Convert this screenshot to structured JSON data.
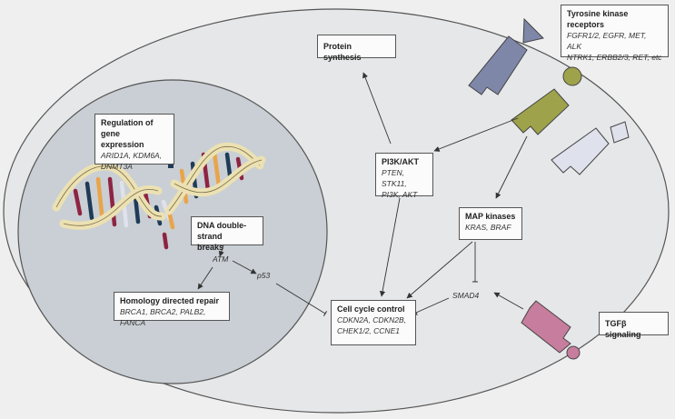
{
  "labels": {
    "protein_synthesis": "Protein synthesis",
    "tyrosine": {
      "title": "Tyrosine kinase receptors",
      "genes1": "FGFR1/2, EGFR, MET, ALK",
      "genes2": "NTRK1, ERBB2/3, RET, etc"
    },
    "regulation": {
      "title1": "Regulation of gene",
      "title2": "expression",
      "genes1": "ARID1A, KDM6A,",
      "genes2": "DNMT3A"
    },
    "pi3k": {
      "title": "PI3K/AKT",
      "genes1": "PTEN, STK11,",
      "genes2": "PI3K, AKT"
    },
    "map": {
      "title": "MAP kinases",
      "genes": "KRAS, BRAF"
    },
    "dsb": {
      "title1": "DNA double-strand",
      "title2": "breaks"
    },
    "atm": "ATM",
    "p53": "p53",
    "smad4": "SMAD4",
    "hdr": {
      "title": "Homology directed repair",
      "genes": "BRCA1, BRCA2, PALB2, FANCA"
    },
    "cell_cycle": {
      "title": "Cell cycle control",
      "genes1": "CDKN2A, CDKN2B,",
      "genes2": "CHEK1/2, CCNE1"
    },
    "tgfb": "TGFβ signaling"
  },
  "colors": {
    "cell": "#e6e7e8",
    "nucleus": "#c9cfd4",
    "receptor_blue": "#7f87a9",
    "receptor_olive": "#9ea24b",
    "receptor_light": "#dfe2ec",
    "receptor_pink": "#c77d9e",
    "dna_backbone": "#ece1b3",
    "dna_red": "#8e2442",
    "dna_navy": "#1f3b57",
    "dna_orange": "#e9a44a"
  }
}
